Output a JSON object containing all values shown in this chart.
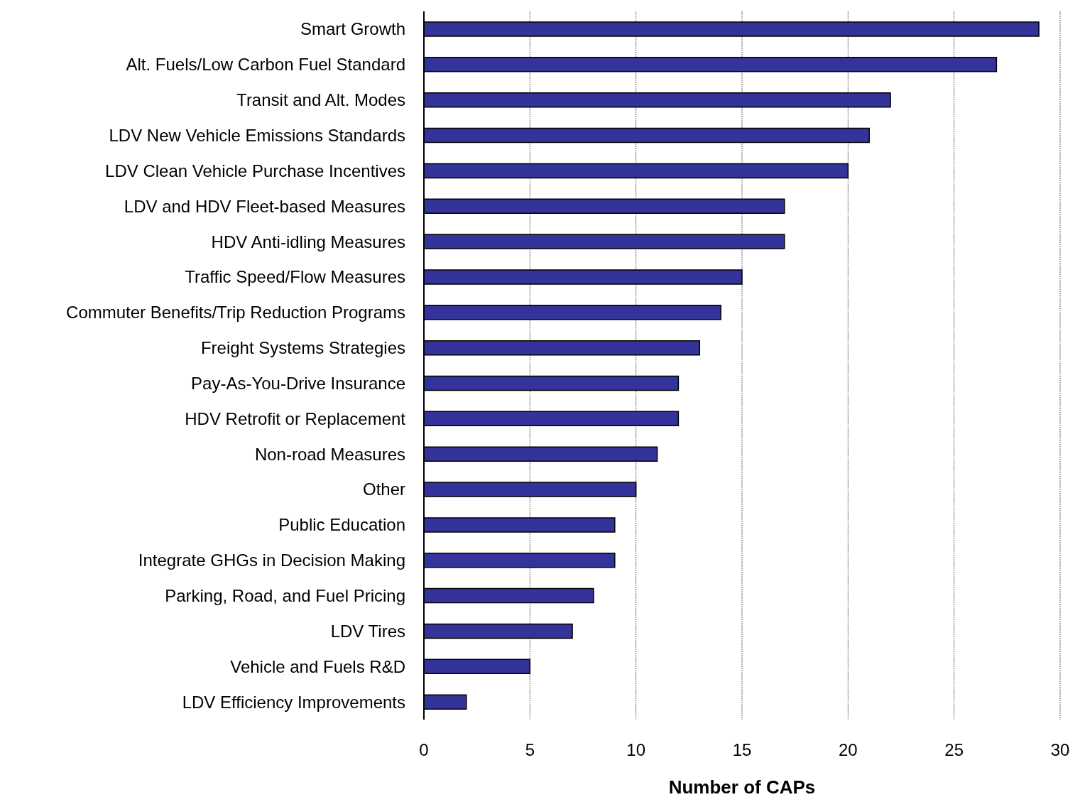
{
  "chart_data": {
    "type": "bar",
    "orientation": "horizontal",
    "xlabel": "Number of CAPs",
    "categories": [
      "Smart Growth",
      "Alt. Fuels/Low Carbon Fuel Standard",
      "Transit and Alt. Modes",
      "LDV New Vehicle Emissions Standards",
      "LDV Clean Vehicle Purchase Incentives",
      "LDV and HDV Fleet-based Measures",
      "HDV Anti-idling Measures",
      "Traffic Speed/Flow Measures",
      "Commuter Benefits/Trip Reduction Programs",
      "Freight Systems Strategies",
      "Pay-As-You-Drive Insurance",
      "HDV Retrofit or Replacement",
      "Non-road Measures",
      "Other",
      "Public Education",
      "Integrate GHGs in Decision Making",
      "Parking, Road, and Fuel Pricing",
      "LDV Tires",
      "Vehicle and Fuels R&D",
      "LDV Efficiency Improvements"
    ],
    "values": [
      29,
      27,
      22,
      21,
      20,
      17,
      17,
      15,
      14,
      13,
      12,
      12,
      11,
      10,
      9,
      9,
      8,
      7,
      5,
      2
    ],
    "color": "#333399",
    "xlim": [
      0,
      30
    ],
    "xticks": [
      0,
      5,
      10,
      15,
      20,
      25,
      30
    ],
    "grid": "x"
  }
}
